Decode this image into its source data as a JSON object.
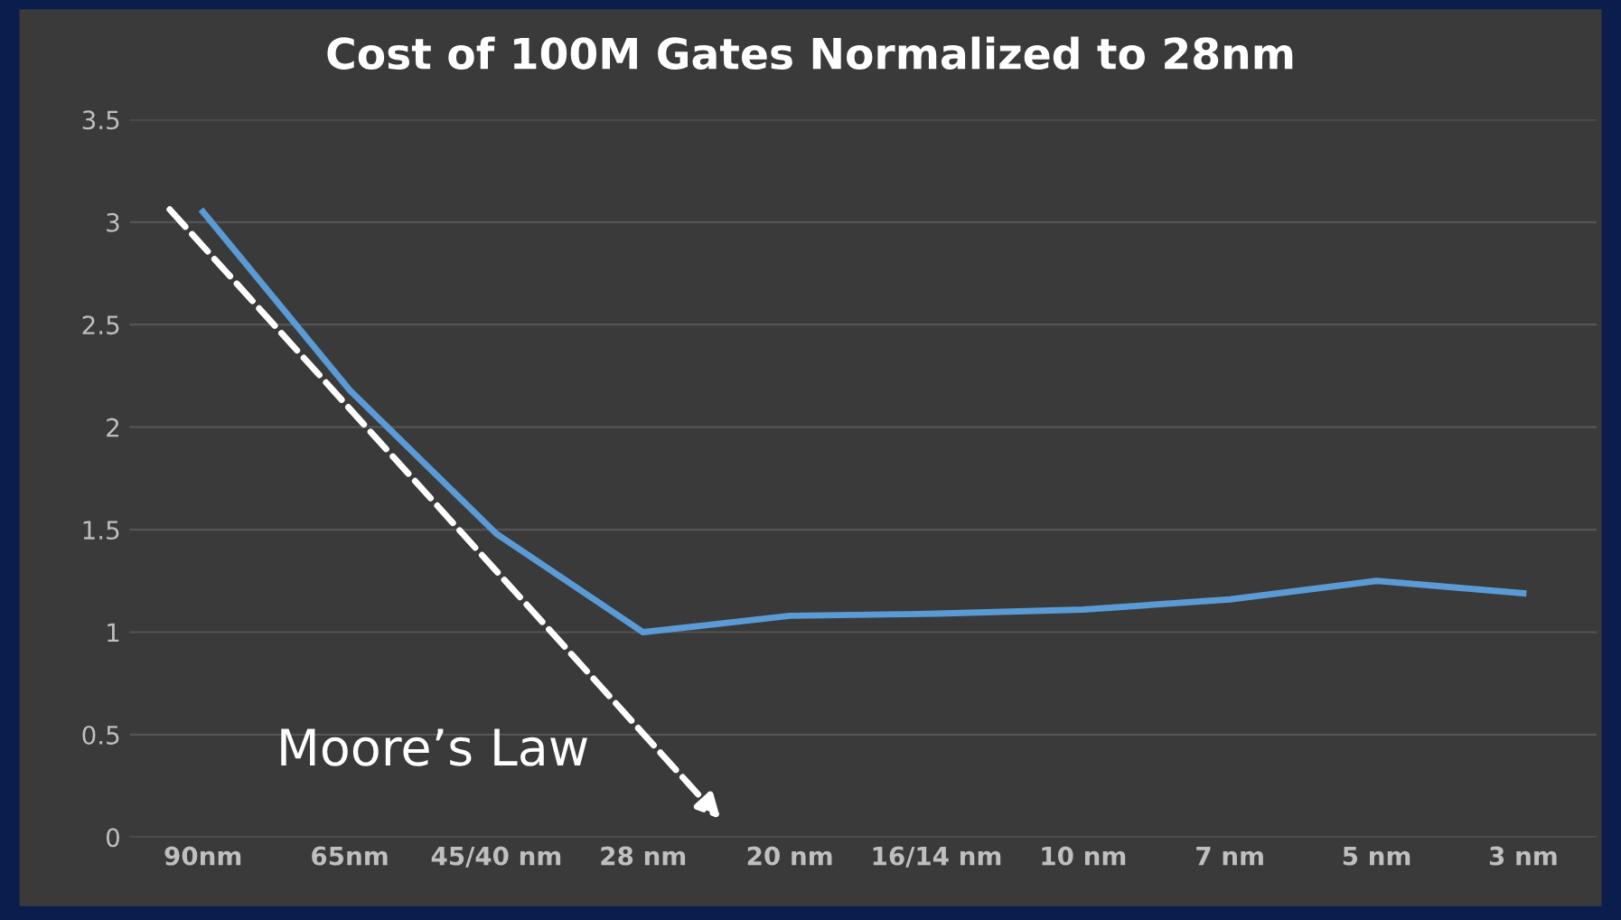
{
  "chart_data": {
    "type": "line",
    "title": "Cost of 100M Gates Normalized to 28nm",
    "categories": [
      "90nm",
      "65nm",
      "45/40 nm",
      "28 nm",
      "20 nm",
      "16/14 nm",
      "10 nm",
      "7 nm",
      "5 nm",
      "3 nm"
    ],
    "series": [
      {
        "color": "#5b9bd5",
        "values": [
          3.05,
          2.18,
          1.48,
          1.0,
          1.08,
          1.09,
          1.11,
          1.16,
          1.25,
          1.19
        ]
      }
    ],
    "ylim": [
      0,
      3.5
    ],
    "yticks": [
      0,
      0.5,
      1,
      1.5,
      2,
      2.5,
      3,
      3.5
    ],
    "grid": "y",
    "marker": "none",
    "line_style": "solid",
    "annotations": [
      "Moore’s Law"
    ]
  }
}
